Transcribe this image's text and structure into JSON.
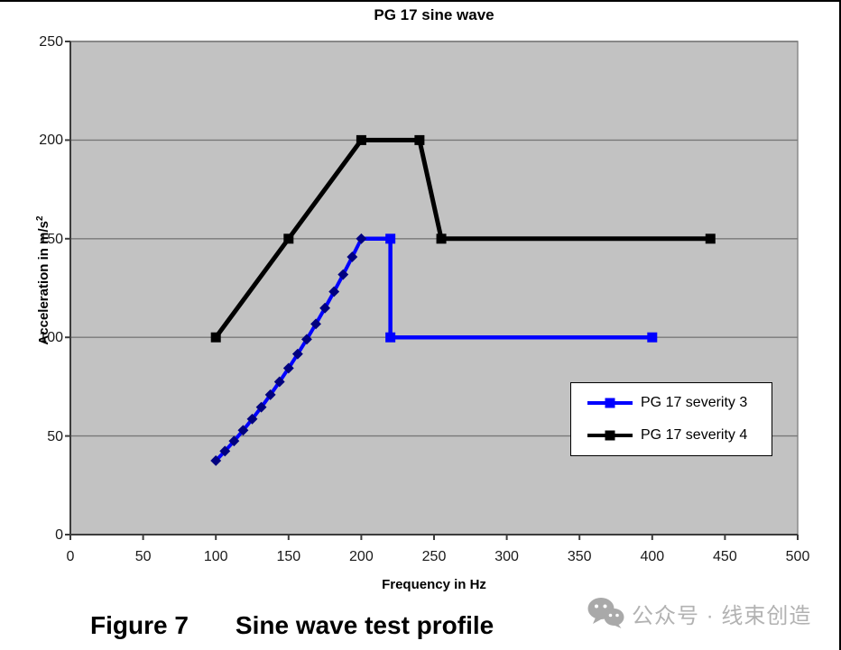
{
  "figure": {
    "title": "PG 17 sine wave"
  },
  "axes": {
    "x_title": "Frequency in Hz",
    "y_title_base": "Acceleration in m/s",
    "y_title_sup": "2"
  },
  "legend": {
    "items": [
      {
        "label": "PG 17 severity 3",
        "color": "#0000ff"
      },
      {
        "label": "PG 17 severity 4",
        "color": "#000000"
      }
    ]
  },
  "caption": {
    "label": "Figure 7",
    "text": "Sine wave test profile"
  },
  "watermark": {
    "icon": "wechat-logo",
    "text": "公众号 · 线束创造",
    "color": "#b2b2b2"
  },
  "chart_data": {
    "type": "line",
    "title": "PG 17 sine wave",
    "xlabel": "Frequency in Hz",
    "ylabel": "Acceleration in m/s²",
    "xlim": [
      0,
      500
    ],
    "ylim": [
      0,
      250
    ],
    "x_ticks": [
      0,
      50,
      100,
      150,
      200,
      250,
      300,
      350,
      400,
      450,
      500
    ],
    "y_ticks": [
      0,
      50,
      100,
      150,
      200,
      250
    ],
    "grid": "horizontal",
    "plot_bg": "#c2c2c2",
    "gridline_color": "#787878",
    "axis_color": "#3c3c3c",
    "legend_position": "inside-right-lower",
    "series": [
      {
        "name": "PG 17 severity 3",
        "color": "#0000ff",
        "marker": "square",
        "profile_points": [
          [
            100,
            37.5
          ],
          [
            200,
            150
          ],
          [
            220,
            150
          ],
          [
            220,
            100
          ],
          [
            400,
            100
          ]
        ],
        "square_marker_points": [
          [
            220,
            150
          ],
          [
            220,
            100
          ],
          [
            400,
            100
          ]
        ],
        "sweep_segment": {
          "f_start": 100,
          "f_end": 200,
          "a_start": 37.5,
          "a_end": 150,
          "law": "a = 150*(f/200)^2",
          "style": "solid line with dense diamond markers",
          "diamond_color": "#000080",
          "diamond_step_hz": 6.25
        }
      },
      {
        "name": "PG 17 severity 4",
        "color": "#000000",
        "marker": "square",
        "profile_points": [
          [
            100,
            100
          ],
          [
            150,
            150
          ],
          [
            200,
            200
          ],
          [
            240,
            200
          ],
          [
            255,
            150
          ],
          [
            440,
            150
          ]
        ],
        "square_marker_points": [
          [
            100,
            100
          ],
          [
            150,
            150
          ],
          [
            200,
            200
          ],
          [
            240,
            200
          ],
          [
            255,
            150
          ],
          [
            440,
            150
          ]
        ]
      }
    ]
  }
}
